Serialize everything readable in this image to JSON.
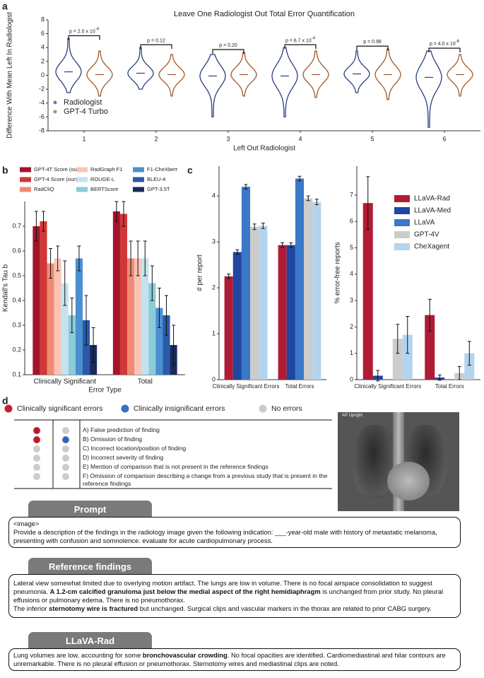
{
  "panel_labels": [
    "a",
    "b",
    "c",
    "d"
  ],
  "chart_data": [
    {
      "type": "violin",
      "title": "Leave One Radiologist Out Total Error Quantification",
      "x_label": "Left Out Radiologist",
      "y_label": "Difference With Mean Left In Radiologist",
      "categories": [
        "1",
        "2",
        "3",
        "4",
        "5",
        "6"
      ],
      "ylim": [
        -8,
        8
      ],
      "yticks": [
        -8,
        -6,
        -4,
        -2,
        0,
        2,
        4,
        6,
        8
      ],
      "legend": "lower left",
      "series": [
        {
          "name": "Radiologist",
          "color": "#2c3e7a",
          "values": [
            0.5,
            0.3,
            -0.1,
            -0.1,
            0.2,
            -0.3
          ],
          "min": [
            -2.5,
            -2,
            -6,
            -6,
            -2.5,
            -7.5
          ],
          "max": [
            5.3,
            4,
            3,
            4,
            3.5,
            3.5
          ]
        },
        {
          "name": "GPT-4 Turbo",
          "color": "#a0582a",
          "values": [
            0.1,
            0.1,
            0.1,
            0.1,
            0.1,
            0.1
          ],
          "min": [
            -3,
            -3,
            -3,
            -3.2,
            -3.5,
            -3
          ],
          "max": [
            3.5,
            3,
            3.3,
            3.5,
            3.8,
            3
          ]
        }
      ],
      "annotations": [
        {
          "text": "p = 2.0 x 10",
          "exponent": "-4"
        },
        {
          "text": "p = 0.12"
        },
        {
          "text": "p = 0.20"
        },
        {
          "text": "p = 6.7 x 10",
          "exponent": "-4"
        },
        {
          "text": "p = 0.98"
        },
        {
          "text": "p = 4.0 x 10",
          "exponent": "-6"
        }
      ]
    },
    {
      "type": "bar",
      "x_label": "Error Type",
      "y_label": "Kendall's Tau b",
      "categories": [
        "Clinically Significant",
        "Total"
      ],
      "ylim": [
        0.1,
        0.8
      ],
      "yticks": [
        0.1,
        0.2,
        0.3,
        0.4,
        0.5,
        0.6,
        0.7
      ],
      "legend": "top",
      "series": [
        {
          "name": "GPT-4T Score (ours)",
          "color": "#a3142c",
          "values": [
            0.7,
            0.76
          ],
          "errors": [
            0.06,
            0.04
          ]
        },
        {
          "name": "GPT-4 Score (ours)",
          "color": "#d03838",
          "values": [
            0.72,
            0.75
          ],
          "errors": [
            0.04,
            0.05
          ]
        },
        {
          "name": "RadCliQ",
          "color": "#f08a74",
          "values": [
            0.55,
            0.57
          ],
          "errors": [
            0.06,
            0.07
          ]
        },
        {
          "name": "RadGraph F1",
          "color": "#f9c4b5",
          "values": [
            0.57,
            0.57
          ],
          "errors": [
            0.05,
            0.07
          ]
        },
        {
          "name": "ROUGE-L",
          "color": "#c4e2ef",
          "values": [
            0.47,
            0.57
          ],
          "errors": [
            0.09,
            0.07
          ]
        },
        {
          "name": "BERTScore",
          "color": "#8ccbd8",
          "values": [
            0.34,
            0.47
          ],
          "errors": [
            0.07,
            0.07
          ]
        },
        {
          "name": "F1-CheXbert",
          "color": "#4a8fd0",
          "values": [
            0.57,
            0.37
          ],
          "errors": [
            0.05,
            0.08
          ]
        },
        {
          "name": "BLEU-4",
          "color": "#2a5aa8",
          "values": [
            0.32,
            0.34
          ],
          "errors": [
            0.1,
            0.08
          ]
        },
        {
          "name": "GPT-3.5T",
          "color": "#1a2a5c",
          "values": [
            0.22,
            0.22
          ],
          "errors": [
            0.07,
            0.08
          ]
        }
      ]
    },
    {
      "type": "bar",
      "y_label": "# per report",
      "categories": [
        "Clinically Significant Errors",
        "Total Errors"
      ],
      "ylim": [
        0,
        4.65
      ],
      "yticks": [
        0,
        1,
        2,
        3,
        4
      ],
      "series": [
        {
          "color": "#b01c35",
          "values": [
            2.25,
            2.93
          ],
          "errors": [
            0.05,
            0.05
          ]
        },
        {
          "color": "#1f46a0",
          "values": [
            2.78,
            2.93
          ],
          "errors": [
            0.05,
            0.05
          ]
        },
        {
          "color": "#3a78c9",
          "values": [
            4.2,
            4.38
          ],
          "errors": [
            0.05,
            0.05
          ]
        },
        {
          "color": "#cccccc",
          "values": [
            3.33,
            3.95
          ],
          "errors": [
            0.06,
            0.05
          ]
        },
        {
          "color": "#b3d4ef",
          "values": [
            3.35,
            3.87
          ],
          "errors": [
            0.06,
            0.06
          ]
        }
      ]
    },
    {
      "type": "bar",
      "y_label": "% error-free reports",
      "categories": [
        "Clinically Significant Errors",
        "Total Errors"
      ],
      "ylim": [
        0,
        8.1
      ],
      "yticks": [
        0,
        1,
        2,
        3,
        4,
        5,
        6,
        7
      ],
      "legend": "upper right",
      "series": [
        {
          "name": "LLaVA-Rad",
          "color": "#b01c35",
          "values": [
            6.7,
            2.45
          ],
          "errors": [
            1.0,
            0.6
          ]
        },
        {
          "name": "LLaVA-Med",
          "color": "#1f46a0",
          "values": [
            0.15,
            0.08
          ],
          "errors": [
            0.2,
            0.1
          ]
        },
        {
          "name": "LLaVA",
          "color": "#3a78c9",
          "values": [
            0,
            0
          ],
          "errors": [
            0,
            0
          ]
        },
        {
          "name": "GPT-4V",
          "color": "#cccccc",
          "values": [
            1.55,
            0.25
          ],
          "errors": [
            0.55,
            0.25
          ]
        },
        {
          "name": "CheXagent",
          "color": "#b3d4ef",
          "values": [
            1.7,
            1.0
          ],
          "errors": [
            0.7,
            0.45
          ]
        }
      ]
    }
  ],
  "error_legend": [
    {
      "label": "Clinically significant errors",
      "color": "#c8202f"
    },
    {
      "label": "Clinically insignificant errors",
      "color": "#3a6fc4"
    },
    {
      "label": "No errors",
      "color": "#cccccc"
    }
  ],
  "error_table": {
    "rows": [
      "A) False prediction of finding",
      "B) Omission of finding",
      "C) Incorrect location/position of finding",
      "D) Incorrect severity of finding",
      "E) Mention of comparison that is not present in the reference findings",
      "F) Omission of comparison describing a change from a previous study that is present in the reference findings"
    ],
    "significant": [
      1,
      1,
      null,
      null,
      null,
      null
    ],
    "insignificant": [
      null,
      1,
      null,
      null,
      null,
      null
    ]
  },
  "image_label": "AP Upright",
  "prompt": {
    "title": "Prompt",
    "paragraphs": [
      [
        "<image>"
      ],
      [
        "Provide a description of the findings in the radiology image given the following indication: ___-year-old male with history of metastatic melanoma, presenting  with confusion and somnolence.  evaluate for acute cardiopulmonary process."
      ]
    ]
  },
  "reference_findings": {
    "title": "Reference findings",
    "paragraphs": [
      [
        "Lateral view somewhat limited due to overlying motion artifact. The lungs are low in volume.  There is no focal airspace consolidation to suggest pneumonia.  ",
        {
          "bold": "A 1.2-cm calcified granuloma just below the medial aspect of the right hemidiaphragm"
        },
        " is unchanged from prior study.  No pleural effusions or pulmonary edema. There is no pneumothorax."
      ],
      [
        "The inferior ",
        {
          "bold": "sternotomy wire is fractured"
        },
        " but unchanged. Surgical clips and vascular markers in the thorax are related to prior CABG surgery."
      ]
    ]
  },
  "llava_rad": {
    "title": "LLaVA-Rad",
    "paragraphs": [
      [
        "Lung volumes are low, accounting for some ",
        {
          "bold": "bronchovascular crowding"
        },
        ". No focal opacities are identified.  Cardiomediastinal and hilar contours are unremarkable.  There is no pleural effusion or pneumothorax.  Sternotomy wires and mediastinal clips are noted."
      ]
    ]
  }
}
